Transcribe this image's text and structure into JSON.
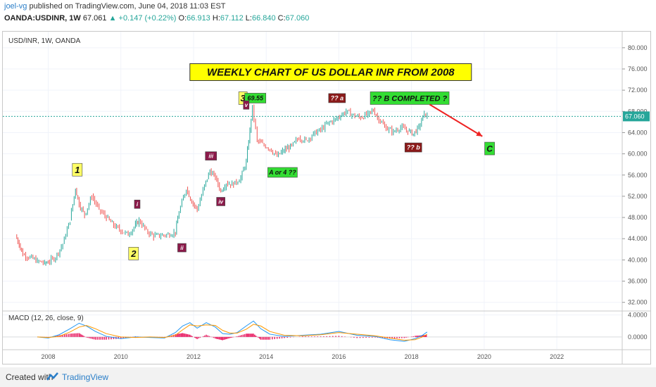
{
  "header": {
    "user": "joel-vg",
    "published": "published on TradingView.com, June 04, 2018 11:03 EST",
    "symbol_line": "OANDA:USDINR, 1W",
    "last": "67.061",
    "change": "+0.147 (+0.22%)",
    "o_label": "O:",
    "o": "66.913",
    "h_label": "H:",
    "h": "67.112",
    "l_label": "L:",
    "l": "66.840",
    "c_label": "C:",
    "c": "67.060"
  },
  "footer": {
    "created_with": "Created with",
    "brand": "TradingView"
  },
  "colors": {
    "up": "#26a69a",
    "down": "#ef5350",
    "macd": "#2196f3",
    "signal": "#ff9800",
    "hist": "#e91e63",
    "price_line": "#26a69a"
  },
  "chart_data": {
    "type": "line",
    "title": "WEEKLY CHART OF US DOLLAR INR FROM 2008",
    "pane_label": "USD/INR, 1W, OANDA",
    "y_ticks": [
      "80.000",
      "76.000",
      "72.000",
      "68.000",
      "64.000",
      "60.000",
      "56.000",
      "52.000",
      "48.000",
      "44.000",
      "40.000",
      "36.000",
      "32.000"
    ],
    "ylim": [
      30.5,
      82.5
    ],
    "x_ticks": [
      "2008",
      "2010",
      "2012",
      "2014",
      "2016",
      "2018",
      "2020",
      "2022"
    ],
    "xlim": [
      2006.75,
      2023.8
    ],
    "last_price": "67.060",
    "series": [
      {
        "x": [
          2007.1,
          2007.2,
          2007.3,
          2007.5,
          2007.7,
          2007.9,
          2008.0,
          2008.2,
          2008.4,
          2008.6,
          2008.75,
          2008.85,
          2009.0,
          2009.2,
          2009.4,
          2009.6,
          2009.8,
          2010.0,
          2010.2,
          2010.4,
          2010.5,
          2010.7,
          2010.9,
          2011.1,
          2011.3,
          2011.5,
          2011.6,
          2011.8,
          2011.95,
          2012.1,
          2012.3,
          2012.45,
          2012.6,
          2012.75,
          2012.9,
          2013.1,
          2013.3,
          2013.45,
          2013.55,
          2013.62,
          2013.75,
          2013.9,
          2014.1,
          2014.3,
          2014.45,
          2014.7,
          2014.9,
          2015.1,
          2015.3,
          2015.5,
          2015.7,
          2015.9,
          2016.05,
          2016.2,
          2016.4,
          2016.6,
          2016.8,
          2016.95,
          2017.1,
          2017.3,
          2017.5,
          2017.7,
          2017.9,
          2018.05,
          2018.2,
          2018.35,
          2018.43
        ],
        "values": [
          44.5,
          43.0,
          41.0,
          40.5,
          39.8,
          39.4,
          39.6,
          40.5,
          43.0,
          47.5,
          53.5,
          50.5,
          48.5,
          52.0,
          49.5,
          48.0,
          46.5,
          45.5,
          44.8,
          46.5,
          47.5,
          45.5,
          44.5,
          44.6,
          44.8,
          45.2,
          49.0,
          53.5,
          51.0,
          49.5,
          54.0,
          56.8,
          55.5,
          53.0,
          54.5,
          54.2,
          55.5,
          58.5,
          64.5,
          68.8,
          62.5,
          61.8,
          61.0,
          59.5,
          60.5,
          61.5,
          63.0,
          62.5,
          63.8,
          64.5,
          65.8,
          66.5,
          67.2,
          68.0,
          67.3,
          66.8,
          67.5,
          68.2,
          66.5,
          64.8,
          64.2,
          65.0,
          64.3,
          63.8,
          65.0,
          67.6,
          67.1
        ]
      }
    ],
    "annotations": [
      {
        "text": "1",
        "x": 2008.8,
        "y": 57.0
      },
      {
        "text": "2",
        "x": 2010.35,
        "y": 41.2
      },
      {
        "text": "3",
        "x": 2013.36,
        "y": 70.5
      },
      {
        "text": "69.55",
        "x": 2013.7,
        "y": 70.5
      },
      {
        "text": "i",
        "x": 2010.45,
        "y": 50.5
      },
      {
        "text": "ii",
        "x": 2011.68,
        "y": 42.3
      },
      {
        "text": "iii",
        "x": 2012.48,
        "y": 59.6
      },
      {
        "text": "iv",
        "x": 2012.75,
        "y": 51.0
      },
      {
        "text": "v",
        "x": 2013.45,
        "y": 69.2
      },
      {
        "text": "A or 4 ??",
        "x": 2014.45,
        "y": 56.5
      },
      {
        "text": "?? a",
        "x": 2015.95,
        "y": 70.5
      },
      {
        "text": "?? B COMPLETED ?",
        "x": 2017.95,
        "y": 70.5
      },
      {
        "text": "?? b",
        "x": 2018.05,
        "y": 61.2
      },
      {
        "text": "C",
        "x": 2020.15,
        "y": 61.0
      }
    ]
  },
  "macd_data": {
    "label": "MACD (12, 26, close, 9)",
    "y_ticks": [
      "4.0000",
      "0.0000"
    ],
    "ylim": [
      -2.2,
      4.6
    ],
    "x": [
      2007.7,
      2008.0,
      2008.3,
      2008.6,
      2008.85,
      2009.05,
      2009.3,
      2009.6,
      2010.0,
      2010.4,
      2010.8,
      2011.2,
      2011.5,
      2011.7,
      2011.9,
      2012.1,
      2012.35,
      2012.6,
      2012.8,
      2013.0,
      2013.2,
      2013.45,
      2013.65,
      2013.85,
      2014.1,
      2014.5,
      2015.0,
      2015.5,
      2016.0,
      2016.5,
      2017.0,
      2017.4,
      2017.8,
      2018.1,
      2018.3,
      2018.43
    ],
    "macd": [
      0.0,
      -0.2,
      0.4,
      1.5,
      2.5,
      2.0,
      1.0,
      0.1,
      -0.3,
      0.0,
      -0.1,
      -0.2,
      0.8,
      2.0,
      2.6,
      1.6,
      2.6,
      1.8,
      0.6,
      0.5,
      0.8,
      2.0,
      2.9,
      1.5,
      0.5,
      0.1,
      0.3,
      0.5,
      1.0,
      0.3,
      0.1,
      -0.5,
      -0.8,
      -0.3,
      0.3,
      0.9
    ],
    "signal": [
      0.0,
      -0.1,
      0.1,
      0.9,
      1.8,
      2.1,
      1.5,
      0.6,
      0.0,
      -0.1,
      0.0,
      -0.1,
      0.3,
      1.3,
      2.2,
      2.0,
      2.2,
      2.1,
      1.2,
      0.7,
      0.7,
      1.4,
      2.3,
      2.0,
      1.0,
      0.3,
      0.2,
      0.4,
      0.8,
      0.5,
      0.2,
      -0.2,
      -0.6,
      -0.5,
      0.0,
      0.5
    ]
  }
}
